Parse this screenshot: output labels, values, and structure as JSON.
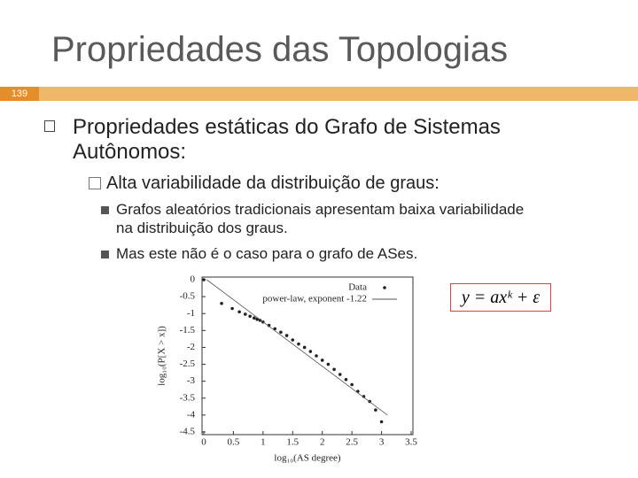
{
  "header": {
    "title": "Propriedades das Topologias",
    "slide_number": "139"
  },
  "bullets": [
    {
      "text": "Propriedades estáticas do Grafo de Sistemas Autônomos:",
      "children": [
        {
          "text": "Alta variabilidade da distribuição de graus:",
          "children": [
            {
              "text": "Grafos aleatórios tradicionais apresentam baixa variabilidade na distribuição dos graus."
            },
            {
              "text": "Mas este não é o caso para o grafo de ASes."
            }
          ]
        }
      ]
    }
  ],
  "equation": "y = axᵏ + ε",
  "chart_data": {
    "type": "scatter",
    "xlabel": "log₁₀(AS degree)",
    "ylabel": "log₁₀(P[X > x])",
    "xlim": [
      0,
      3.5
    ],
    "ylim": [
      -4.5,
      0
    ],
    "xticks": [
      0,
      0.5,
      1,
      1.5,
      2,
      2.5,
      3,
      3.5
    ],
    "yticks": [
      0,
      -0.5,
      -1,
      -1.5,
      -2,
      -2.5,
      -3,
      -3.5,
      -4,
      -4.5
    ],
    "series": [
      {
        "name": "Data",
        "color": "#222222",
        "x": [
          0,
          0.3,
          0.48,
          0.6,
          0.7,
          0.78,
          0.85,
          0.9,
          0.95,
          1.0,
          1.1,
          1.2,
          1.3,
          1.4,
          1.5,
          1.6,
          1.7,
          1.8,
          1.9,
          2.0,
          2.1,
          2.2,
          2.3,
          2.4,
          2.5,
          2.6,
          2.7,
          2.8,
          2.9,
          3.0
        ],
        "values": [
          0,
          -0.7,
          -0.85,
          -0.95,
          -1.02,
          -1.08,
          -1.13,
          -1.17,
          -1.2,
          -1.25,
          -1.35,
          -1.45,
          -1.55,
          -1.65,
          -1.78,
          -1.9,
          -2.0,
          -2.12,
          -2.25,
          -2.38,
          -2.5,
          -2.65,
          -2.8,
          -2.95,
          -3.1,
          -3.3,
          -3.45,
          -3.6,
          -3.85,
          -4.2
        ]
      },
      {
        "name": "power-law, exponent -1.22",
        "color": "#555555",
        "type": "line",
        "x": [
          0.05,
          3.1
        ],
        "values": [
          0,
          -4.0
        ]
      }
    ]
  }
}
